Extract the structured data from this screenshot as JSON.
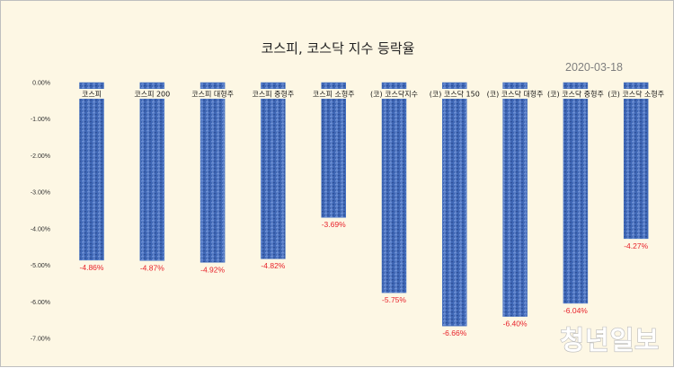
{
  "watermark": "청년일보",
  "chart_data": {
    "type": "bar",
    "title": "코스피, 코스닥 지수 등락율",
    "subtitle": "2020-03-18",
    "categories": [
      "코스피",
      "코스피 200",
      "코스피 대형주",
      "코스피 중형주",
      "코스피 소형주",
      "(코) 코스닥지수",
      "(코) 코스닥 150",
      "(코) 코스닥 대형주",
      "(코) 코스닥 중형주",
      "(코) 코스닥 소형주"
    ],
    "values": [
      -4.86,
      -4.87,
      -4.92,
      -4.82,
      -3.69,
      -5.75,
      -6.66,
      -6.4,
      -6.04,
      -4.27
    ],
    "value_labels": [
      "-4.86%",
      "-4.87%",
      "-4.92%",
      "-4.82%",
      "-3.69%",
      "-5.75%",
      "-6.66%",
      "-6.40%",
      "-6.04%",
      "-4.27%"
    ],
    "ylim": [
      -7,
      0
    ],
    "yticks": [
      0,
      -1,
      -2,
      -3,
      -4,
      -5,
      -6,
      -7
    ],
    "ytick_labels": [
      "0.00%",
      "-1.00%",
      "-2.00%",
      "-3.00%",
      "-4.00%",
      "-5.00%",
      "-6.00%",
      "-7.00%"
    ],
    "bar_color": "#4472c4",
    "value_label_color": "#e8222a",
    "grid": false,
    "legend": "none"
  }
}
